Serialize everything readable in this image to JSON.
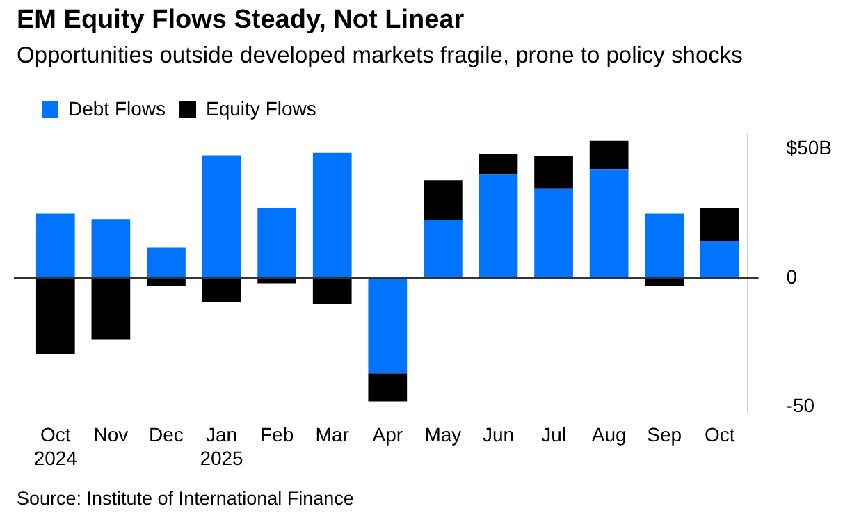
{
  "chart_data": {
    "type": "bar",
    "title": "EM Equity Flows Steady, Not Linear",
    "subtitle": "Opportunities outside developed markets fragile, prone to policy shocks",
    "categories": [
      "Oct 2024",
      "Nov",
      "Dec",
      "Jan 2025",
      "Feb",
      "Mar",
      "Apr",
      "May",
      "Jun",
      "Jul",
      "Aug",
      "Sep",
      "Oct"
    ],
    "series": [
      {
        "name": "Debt Flows",
        "color": "#0073ff",
        "values": [
          24.9,
          22.8,
          11.7,
          47.5,
          27.2,
          48.5,
          -37,
          22.4,
          40,
          34.5,
          42.2,
          24.9,
          14.2
        ]
      },
      {
        "name": "Equity Flows",
        "color": "#000000",
        "values": [
          -29.7,
          -23.9,
          -3,
          -9.4,
          -2.1,
          -10.1,
          -10.9,
          15.5,
          7.9,
          12.8,
          10.9,
          -3.2,
          13
        ]
      }
    ],
    "stacked": true,
    "ylim": [
      -52,
      56
    ],
    "yticks": [
      {
        "value": 50,
        "label": "$50B"
      },
      0,
      -50
    ],
    "ref_lines": [
      {
        "axis": "y",
        "value": 0,
        "color": "#333333"
      }
    ],
    "grid": false,
    "legend": "top left",
    "annotations": [
      "Source: Institute of International Finance"
    ]
  }
}
